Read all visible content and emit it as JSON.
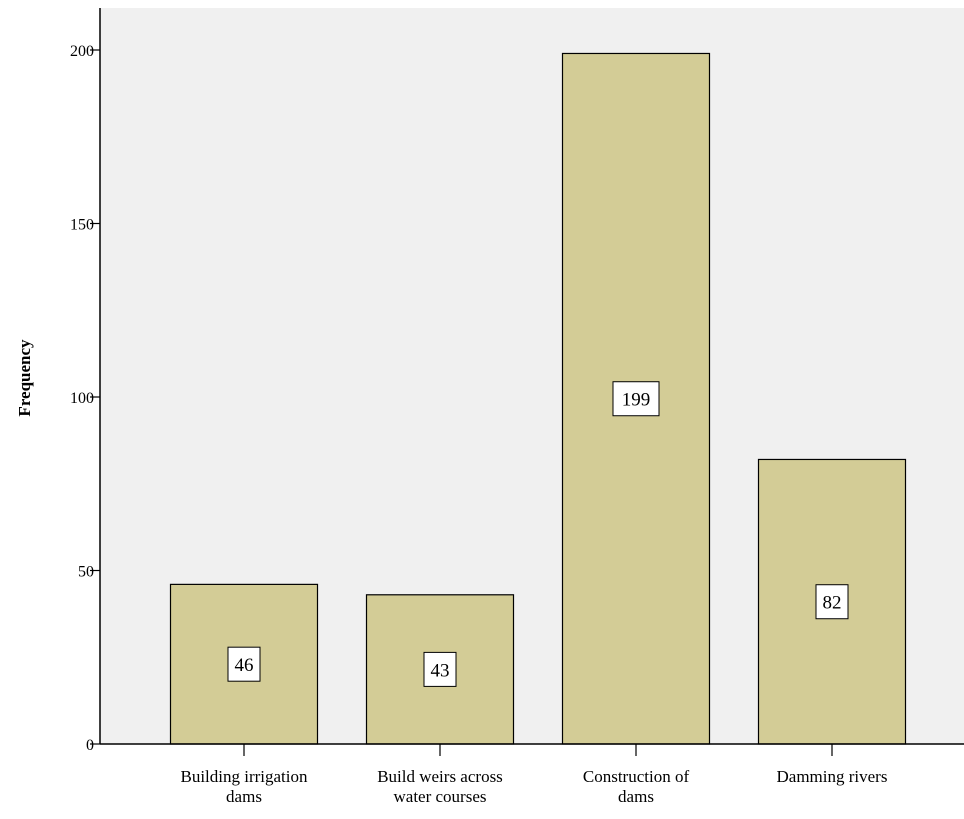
{
  "chart_data": {
    "type": "bar",
    "title": "",
    "xlabel": "",
    "ylabel": "Frequency",
    "categories": [
      [
        "Building irrigation",
        "dams"
      ],
      [
        "Build weirs across",
        "water courses"
      ],
      [
        "Construction of",
        "dams"
      ],
      [
        "Damming rivers"
      ]
    ],
    "values": [
      46,
      43,
      199,
      82
    ],
    "data_labels": [
      "46",
      "43",
      "199",
      "82"
    ],
    "ylim": [
      0,
      200
    ],
    "yticks": [
      0,
      50,
      100,
      150,
      200
    ],
    "ytick_labels": [
      "0",
      "50",
      "100",
      "150",
      "200"
    ],
    "grid": false,
    "legend": "none",
    "colors": {
      "bar_fill": "#d3cc96",
      "bar_stroke": "#000000",
      "plot_background": "#f0f0f0",
      "axis": "#000000",
      "label_box": "#ffffff"
    }
  }
}
